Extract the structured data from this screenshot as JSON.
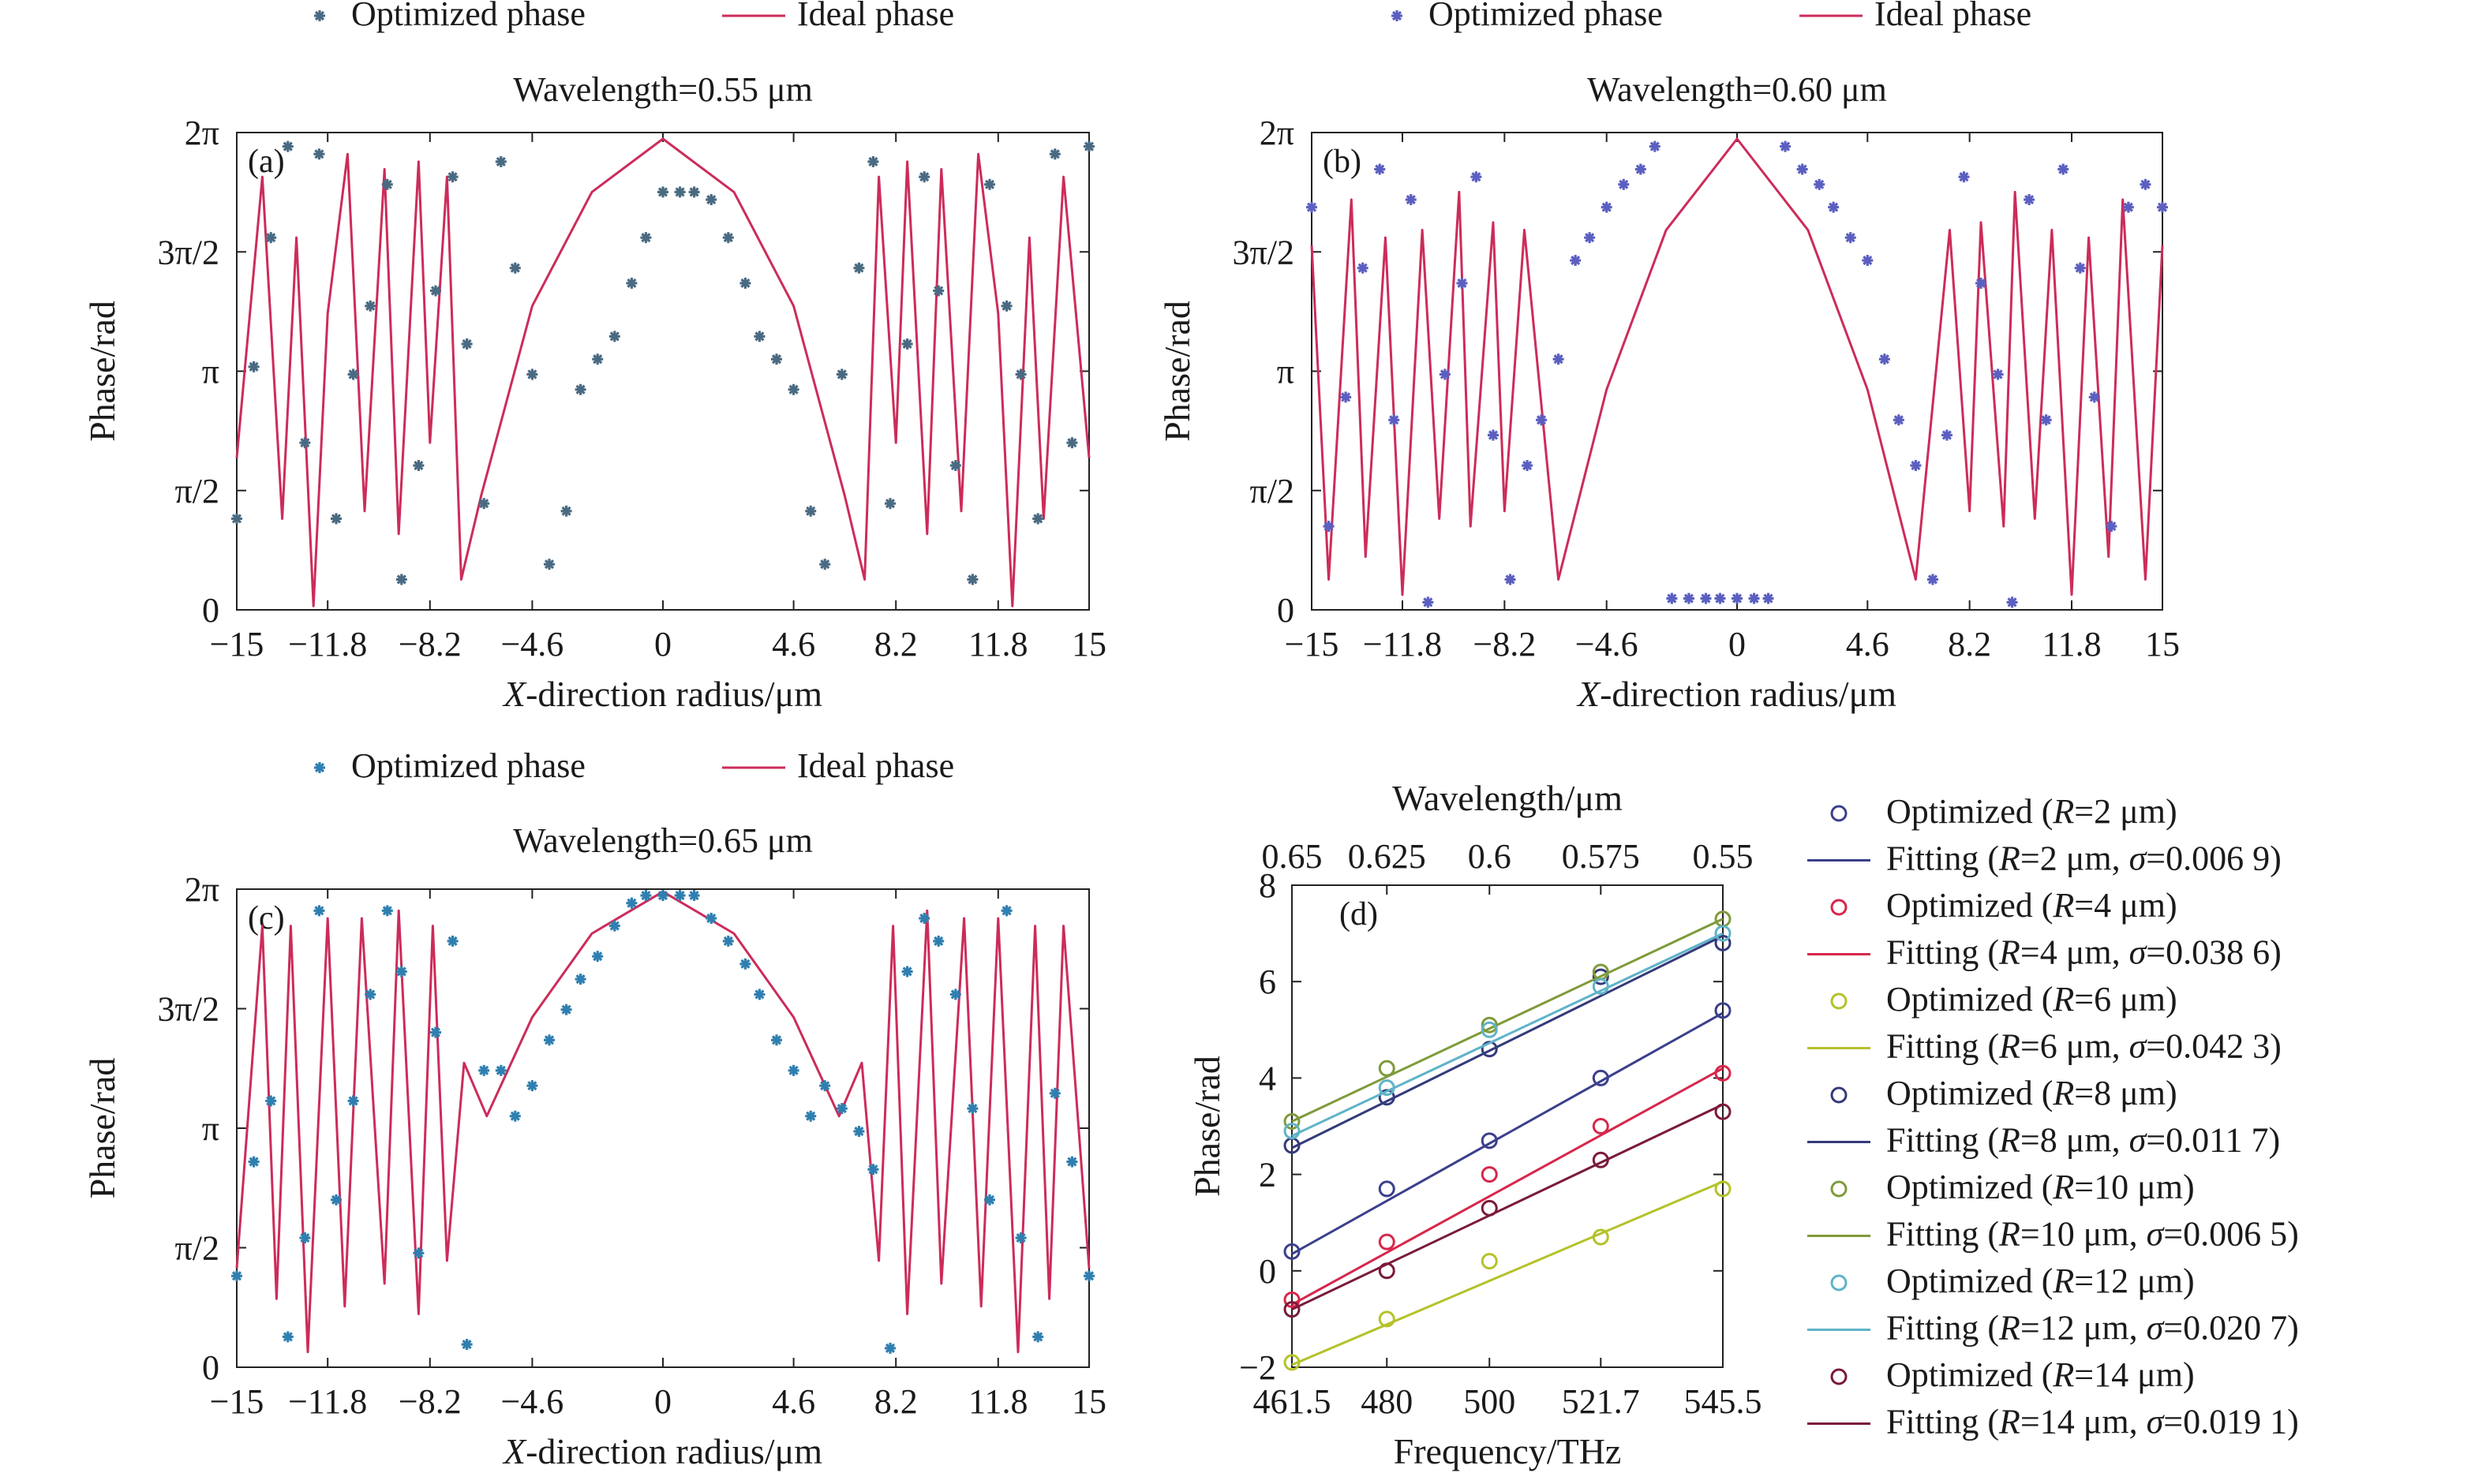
{
  "chart_data": [
    {
      "type": "line",
      "panel_label": "(a)",
      "title": "Wavelength=0.55 μm",
      "xlabel_var": "X",
      "xlabel_rest": "-direction radius/μm",
      "ylabel": "Phase/rad",
      "xlim": [
        -15,
        15
      ],
      "ylim": [
        0,
        6.2832
      ],
      "x_ticks": [
        -15,
        -11.8,
        -8.2,
        -4.6,
        0,
        4.6,
        8.2,
        11.8,
        15
      ],
      "x_tick_labels": [
        "−15",
        "−11.8",
        "−8.2",
        "−4.6",
        "0",
        "4.6",
        "8.2",
        "11.8",
        "15"
      ],
      "y_ticks": [
        0,
        1.5708,
        3.1416,
        4.7124,
        6.2832
      ],
      "y_tick_labels": [
        "0",
        "π/2",
        "π",
        "3π/2",
        "2π"
      ],
      "legend": [
        {
          "name": "Optimized phase",
          "marker": "*",
          "color": "#4a6a82"
        },
        {
          "name": "Ideal phase",
          "marker": "line",
          "color": "#cc2c5a"
        }
      ],
      "series": [
        {
          "name": "Optimized phase",
          "marker": "*",
          "color": "#4a6a82",
          "x": [
            -15,
            -14.4,
            -13.8,
            -13.2,
            -12.6,
            -12.1,
            -11.5,
            -10.9,
            -10.3,
            -9.7,
            -9.2,
            -8.6,
            -8.0,
            -7.4,
            -6.9,
            -6.3,
            -5.7,
            -5.2,
            -4.6,
            -4.0,
            -3.4,
            -2.9,
            -2.3,
            -1.7,
            -1.1,
            -0.6,
            0,
            0.6,
            1.1,
            1.7,
            2.3,
            2.9,
            3.4,
            4.0,
            4.6,
            5.2,
            5.7,
            6.3,
            6.9,
            7.4,
            8.0,
            8.6,
            9.2,
            9.7,
            10.3,
            10.9,
            11.5,
            12.1,
            12.6,
            13.2,
            13.8,
            14.4,
            15
          ],
          "y": [
            1.2,
            3.2,
            4.9,
            6.1,
            2.2,
            6.0,
            1.2,
            3.1,
            4.0,
            5.6,
            0.4,
            1.9,
            4.2,
            5.7,
            3.5,
            1.4,
            5.9,
            4.5,
            3.1,
            0.6,
            1.3,
            2.9,
            3.3,
            3.6,
            4.3,
            4.9,
            5.5,
            5.5,
            5.5,
            5.4,
            4.9,
            4.3,
            3.6,
            3.3,
            2.9,
            1.3,
            0.6,
            3.1,
            4.5,
            5.9,
            1.4,
            3.5,
            5.7,
            4.2,
            1.9,
            0.4,
            5.6,
            4.0,
            3.1,
            1.2,
            6.0,
            2.2,
            6.1
          ]
        },
        {
          "name": "Ideal phase",
          "marker": "line",
          "color": "#cc2c5a",
          "x": [
            -15,
            -14.1,
            -13.4,
            -12.9,
            -12.3,
            -11.8,
            -11.1,
            -10.5,
            -9.8,
            -9.3,
            -8.6,
            -8.2,
            -7.6,
            -7.1,
            -6.4,
            -4.6,
            -2.5,
            0,
            2.5,
            4.6,
            6.4,
            7.1,
            7.6,
            8.2,
            8.6,
            9.3,
            9.8,
            10.5,
            11.1,
            11.8,
            12.3,
            12.9,
            13.4,
            14.1,
            15
          ],
          "y": [
            2.0,
            5.7,
            1.2,
            4.9,
            0.05,
            3.9,
            6.0,
            1.3,
            5.8,
            1.0,
            5.9,
            2.2,
            5.7,
            0.4,
            1.5,
            4.0,
            5.5,
            6.2,
            5.5,
            4.0,
            1.5,
            0.4,
            5.7,
            2.2,
            5.9,
            1.0,
            5.8,
            1.3,
            6.0,
            3.9,
            0.05,
            4.9,
            1.2,
            5.7,
            2.0
          ]
        }
      ]
    },
    {
      "type": "line",
      "panel_label": "(b)",
      "title": "Wavelength=0.60 μm",
      "xlabel_var": "X",
      "xlabel_rest": "-direction radius/μm",
      "ylabel": "Phase/rad",
      "xlim": [
        -15,
        15
      ],
      "ylim": [
        0,
        6.2832
      ],
      "x_ticks": [
        -15,
        -11.8,
        -8.2,
        -4.6,
        0,
        4.6,
        8.2,
        11.8,
        15
      ],
      "x_tick_labels": [
        "−15",
        "−11.8",
        "−8.2",
        "−4.6",
        "0",
        "4.6",
        "8.2",
        "11.8",
        "15"
      ],
      "y_ticks": [
        0,
        1.5708,
        3.1416,
        4.7124,
        6.2832
      ],
      "y_tick_labels": [
        "0",
        "π/2",
        "π",
        "3π/2",
        "2π"
      ],
      "legend": [
        {
          "name": "Optimized phase",
          "marker": "*",
          "color": "#5b5fc0"
        },
        {
          "name": "Ideal phase",
          "marker": "line",
          "color": "#cc2c5a"
        }
      ],
      "series": [
        {
          "name": "Optimized phase",
          "marker": "*",
          "color": "#5b5fc0",
          "x": [
            -15,
            -14.4,
            -13.8,
            -13.2,
            -12.6,
            -12.1,
            -11.5,
            -10.9,
            -10.3,
            -9.7,
            -9.2,
            -8.6,
            -8.0,
            -7.4,
            -6.9,
            -6.3,
            -5.7,
            -5.2,
            -4.6,
            -4.0,
            -3.4,
            -2.9,
            -2.3,
            -1.7,
            -1.1,
            -0.6,
            0,
            0.6,
            1.1,
            1.7,
            2.3,
            2.9,
            3.4,
            4.0,
            4.6,
            5.2,
            5.7,
            6.3,
            6.9,
            7.4,
            8.0,
            8.6,
            9.2,
            9.7,
            10.3,
            10.9,
            11.5,
            12.1,
            12.6,
            13.2,
            13.8,
            14.4,
            15
          ],
          "y": [
            5.3,
            1.1,
            2.8,
            4.5,
            5.8,
            2.5,
            5.4,
            0.1,
            3.1,
            4.3,
            5.7,
            2.3,
            0.4,
            1.9,
            2.5,
            3.3,
            4.6,
            4.9,
            5.3,
            5.6,
            5.8,
            6.1,
            0.15,
            0.15,
            0.15,
            0.15,
            0.15,
            0.15,
            0.15,
            6.1,
            5.8,
            5.6,
            5.3,
            4.9,
            4.6,
            3.3,
            2.5,
            1.9,
            0.4,
            2.3,
            5.7,
            4.3,
            3.1,
            0.1,
            5.4,
            2.5,
            5.8,
            4.5,
            2.8,
            1.1,
            5.3,
            5.6,
            5.3
          ]
        },
        {
          "name": "Ideal phase",
          "marker": "line",
          "color": "#cc2c5a",
          "x": [
            -15,
            -14.4,
            -13.6,
            -13.1,
            -12.4,
            -11.8,
            -11.1,
            -10.5,
            -9.8,
            -9.4,
            -8.6,
            -8.2,
            -7.5,
            -6.3,
            -4.6,
            -2.5,
            0,
            2.5,
            4.6,
            6.3,
            7.5,
            8.2,
            8.6,
            9.4,
            9.8,
            10.5,
            11.1,
            11.8,
            12.4,
            13.1,
            13.6,
            14.4,
            15
          ],
          "y": [
            4.8,
            0.4,
            5.4,
            0.7,
            4.9,
            0.2,
            5.0,
            1.2,
            5.5,
            1.1,
            5.1,
            1.3,
            5.0,
            0.4,
            2.9,
            5.0,
            6.2,
            5.0,
            2.9,
            0.4,
            5.0,
            1.3,
            5.1,
            1.1,
            5.5,
            1.2,
            5.0,
            0.2,
            4.9,
            0.7,
            5.4,
            0.4,
            4.8
          ]
        }
      ]
    },
    {
      "type": "line",
      "panel_label": "(c)",
      "title": "Wavelength=0.65 μm",
      "xlabel_var": "X",
      "xlabel_rest": "-direction radius/μm",
      "ylabel": "Phase/rad",
      "xlim": [
        -15,
        15
      ],
      "ylim": [
        0,
        6.2832
      ],
      "x_ticks": [
        -15,
        -11.8,
        -8.2,
        -4.6,
        0,
        4.6,
        8.2,
        11.8,
        15
      ],
      "x_tick_labels": [
        "−15",
        "−11.8",
        "−8.2",
        "−4.6",
        "0",
        "4.6",
        "8.2",
        "11.8",
        "15"
      ],
      "y_ticks": [
        0,
        1.5708,
        3.1416,
        4.7124,
        6.2832
      ],
      "y_tick_labels": [
        "0",
        "π/2",
        "π",
        "3π/2",
        "2π"
      ],
      "legend": [
        {
          "name": "Optimized phase",
          "marker": "*",
          "color": "#2f7fb0"
        },
        {
          "name": "Ideal phase",
          "marker": "line",
          "color": "#cc2c5a"
        }
      ],
      "series": [
        {
          "name": "Optimized phase",
          "marker": "*",
          "color": "#2f7fb0",
          "x": [
            -15,
            -14.4,
            -13.8,
            -13.2,
            -12.6,
            -12.1,
            -11.5,
            -10.9,
            -10.3,
            -9.7,
            -9.2,
            -8.6,
            -8.0,
            -7.4,
            -6.9,
            -6.3,
            -5.7,
            -5.2,
            -4.6,
            -4.0,
            -3.4,
            -2.9,
            -2.3,
            -1.7,
            -1.1,
            -0.6,
            0,
            0.6,
            1.1,
            1.7,
            2.3,
            2.9,
            3.4,
            4.0,
            4.6,
            5.2,
            5.7,
            6.3,
            6.9,
            7.4,
            8.0,
            8.6,
            9.2,
            9.7,
            10.3,
            10.9,
            11.5,
            12.1,
            12.6,
            13.2,
            13.8,
            14.4,
            15
          ],
          "y": [
            1.2,
            2.7,
            3.5,
            0.4,
            1.7,
            6.0,
            2.2,
            3.5,
            4.9,
            6.0,
            5.2,
            1.5,
            4.4,
            5.6,
            0.3,
            3.9,
            3.9,
            3.3,
            3.7,
            4.3,
            4.7,
            5.1,
            5.4,
            5.8,
            6.1,
            6.2,
            6.2,
            6.2,
            6.2,
            5.9,
            5.6,
            5.3,
            4.9,
            4.3,
            3.9,
            3.3,
            3.7,
            3.4,
            3.1,
            2.6,
            0.25,
            5.2,
            5.9,
            5.6,
            4.9,
            3.4,
            2.2,
            6.0,
            1.7,
            0.4,
            3.6,
            2.7,
            1.2
          ]
        },
        {
          "name": "Ideal phase",
          "marker": "line",
          "color": "#cc2c5a",
          "x": [
            -15,
            -14.1,
            -13.6,
            -13.1,
            -12.5,
            -11.8,
            -11.2,
            -10.6,
            -9.8,
            -9.3,
            -8.6,
            -8.1,
            -7.6,
            -7.0,
            -6.2,
            -4.6,
            -2.5,
            0,
            2.5,
            4.6,
            6.2,
            7.0,
            7.6,
            8.1,
            8.6,
            9.3,
            9.8,
            10.6,
            11.2,
            11.8,
            12.5,
            13.1,
            13.6,
            14.1,
            15
          ],
          "y": [
            1.3,
            5.8,
            0.9,
            5.8,
            0.2,
            5.9,
            0.8,
            5.9,
            1.1,
            6.0,
            0.7,
            5.8,
            1.4,
            4.0,
            3.3,
            4.6,
            5.7,
            6.25,
            5.7,
            4.6,
            3.3,
            4.0,
            1.4,
            5.8,
            0.7,
            6.0,
            1.1,
            5.9,
            0.8,
            5.9,
            0.2,
            5.8,
            0.9,
            5.8,
            1.3
          ]
        }
      ]
    },
    {
      "type": "scatter",
      "panel_label": "(d)",
      "xlabel": "Frequency/THz",
      "ylabel": "Phase/rad",
      "top_xlabel": "Wavelength/μm",
      "xlim": [
        461.5,
        545.5
      ],
      "ylim": [
        -2,
        8
      ],
      "x_ticks": [
        461.5,
        480,
        500,
        521.7,
        545.5
      ],
      "x_tick_labels": [
        "461.5",
        "480",
        "500",
        "521.7",
        "545.5"
      ],
      "top_x_tick_labels": [
        "0.65",
        "0.625",
        "0.6",
        "0.575",
        "0.55"
      ],
      "y_ticks": [
        -2,
        0,
        2,
        4,
        6,
        8
      ],
      "y_tick_labels": [
        "−2",
        "0",
        "2",
        "4",
        "6",
        "8"
      ],
      "x": [
        461.5,
        480,
        500,
        521.7,
        545.5
      ],
      "series": [
        {
          "radius": "2",
          "sigma": "0.006 9",
          "color": "#3b3f8c",
          "values": [
            0.4,
            1.7,
            2.7,
            4.0,
            5.4
          ],
          "fit": [
            0.35,
            5.35
          ]
        },
        {
          "radius": "4",
          "sigma": "0.038 6",
          "color": "#d8264b",
          "values": [
            -0.6,
            0.6,
            2.0,
            3.0,
            4.1
          ],
          "fit": [
            -0.7,
            4.2
          ]
        },
        {
          "radius": "6",
          "sigma": "0.042 3",
          "color": "#b4c22a",
          "values": [
            -1.9,
            -1.0,
            0.2,
            0.7,
            1.7
          ],
          "fit": [
            -1.95,
            1.85
          ]
        },
        {
          "radius": "8",
          "sigma": "0.011 7",
          "color": "#343a7a",
          "values": [
            2.6,
            3.6,
            4.6,
            6.1,
            6.8
          ],
          "fit": [
            2.55,
            6.95
          ]
        },
        {
          "radius": "10",
          "sigma": "0.006 5",
          "color": "#7f9a3a",
          "values": [
            3.1,
            4.2,
            5.1,
            6.2,
            7.3
          ],
          "fit": [
            3.1,
            7.3
          ]
        },
        {
          "radius": "12",
          "sigma": "0.020 7",
          "color": "#5fb3c9",
          "values": [
            2.9,
            3.8,
            5.0,
            5.9,
            7.0
          ],
          "fit": [
            2.8,
            7.0
          ]
        },
        {
          "radius": "14",
          "sigma": "0.019 1",
          "color": "#7a1a3a",
          "values": [
            -0.8,
            0.0,
            1.3,
            2.3,
            3.3
          ],
          "fit": [
            -0.8,
            3.45
          ]
        }
      ],
      "legend_opt_prefix": "Optimized (",
      "legend_fit_prefix": "Fitting (",
      "legend_r": "R",
      "legend_sigma": "σ",
      "legend_unit": " μm"
    }
  ]
}
